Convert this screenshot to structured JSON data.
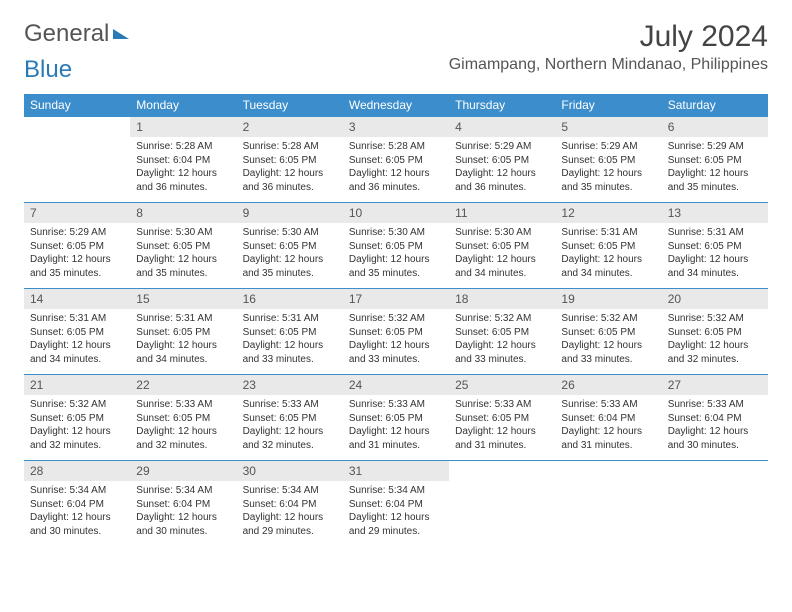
{
  "logo": {
    "part1": "General",
    "part2": "Blue"
  },
  "title": "July 2024",
  "location": "Gimampang, Northern Mindanao, Philippines",
  "colors": {
    "header_bg": "#3b8dcb",
    "daynum_bg": "#e9e9e9",
    "border": "#3b8dcb"
  },
  "weekdays": [
    "Sunday",
    "Monday",
    "Tuesday",
    "Wednesday",
    "Thursday",
    "Friday",
    "Saturday"
  ],
  "weeks": [
    [
      null,
      {
        "n": "1",
        "sr": "5:28 AM",
        "ss": "6:04 PM",
        "dl": "12 hours and 36 minutes."
      },
      {
        "n": "2",
        "sr": "5:28 AM",
        "ss": "6:05 PM",
        "dl": "12 hours and 36 minutes."
      },
      {
        "n": "3",
        "sr": "5:28 AM",
        "ss": "6:05 PM",
        "dl": "12 hours and 36 minutes."
      },
      {
        "n": "4",
        "sr": "5:29 AM",
        "ss": "6:05 PM",
        "dl": "12 hours and 36 minutes."
      },
      {
        "n": "5",
        "sr": "5:29 AM",
        "ss": "6:05 PM",
        "dl": "12 hours and 35 minutes."
      },
      {
        "n": "6",
        "sr": "5:29 AM",
        "ss": "6:05 PM",
        "dl": "12 hours and 35 minutes."
      }
    ],
    [
      {
        "n": "7",
        "sr": "5:29 AM",
        "ss": "6:05 PM",
        "dl": "12 hours and 35 minutes."
      },
      {
        "n": "8",
        "sr": "5:30 AM",
        "ss": "6:05 PM",
        "dl": "12 hours and 35 minutes."
      },
      {
        "n": "9",
        "sr": "5:30 AM",
        "ss": "6:05 PM",
        "dl": "12 hours and 35 minutes."
      },
      {
        "n": "10",
        "sr": "5:30 AM",
        "ss": "6:05 PM",
        "dl": "12 hours and 35 minutes."
      },
      {
        "n": "11",
        "sr": "5:30 AM",
        "ss": "6:05 PM",
        "dl": "12 hours and 34 minutes."
      },
      {
        "n": "12",
        "sr": "5:31 AM",
        "ss": "6:05 PM",
        "dl": "12 hours and 34 minutes."
      },
      {
        "n": "13",
        "sr": "5:31 AM",
        "ss": "6:05 PM",
        "dl": "12 hours and 34 minutes."
      }
    ],
    [
      {
        "n": "14",
        "sr": "5:31 AM",
        "ss": "6:05 PM",
        "dl": "12 hours and 34 minutes."
      },
      {
        "n": "15",
        "sr": "5:31 AM",
        "ss": "6:05 PM",
        "dl": "12 hours and 34 minutes."
      },
      {
        "n": "16",
        "sr": "5:31 AM",
        "ss": "6:05 PM",
        "dl": "12 hours and 33 minutes."
      },
      {
        "n": "17",
        "sr": "5:32 AM",
        "ss": "6:05 PM",
        "dl": "12 hours and 33 minutes."
      },
      {
        "n": "18",
        "sr": "5:32 AM",
        "ss": "6:05 PM",
        "dl": "12 hours and 33 minutes."
      },
      {
        "n": "19",
        "sr": "5:32 AM",
        "ss": "6:05 PM",
        "dl": "12 hours and 33 minutes."
      },
      {
        "n": "20",
        "sr": "5:32 AM",
        "ss": "6:05 PM",
        "dl": "12 hours and 32 minutes."
      }
    ],
    [
      {
        "n": "21",
        "sr": "5:32 AM",
        "ss": "6:05 PM",
        "dl": "12 hours and 32 minutes."
      },
      {
        "n": "22",
        "sr": "5:33 AM",
        "ss": "6:05 PM",
        "dl": "12 hours and 32 minutes."
      },
      {
        "n": "23",
        "sr": "5:33 AM",
        "ss": "6:05 PM",
        "dl": "12 hours and 32 minutes."
      },
      {
        "n": "24",
        "sr": "5:33 AM",
        "ss": "6:05 PM",
        "dl": "12 hours and 31 minutes."
      },
      {
        "n": "25",
        "sr": "5:33 AM",
        "ss": "6:05 PM",
        "dl": "12 hours and 31 minutes."
      },
      {
        "n": "26",
        "sr": "5:33 AM",
        "ss": "6:04 PM",
        "dl": "12 hours and 31 minutes."
      },
      {
        "n": "27",
        "sr": "5:33 AM",
        "ss": "6:04 PM",
        "dl": "12 hours and 30 minutes."
      }
    ],
    [
      {
        "n": "28",
        "sr": "5:34 AM",
        "ss": "6:04 PM",
        "dl": "12 hours and 30 minutes."
      },
      {
        "n": "29",
        "sr": "5:34 AM",
        "ss": "6:04 PM",
        "dl": "12 hours and 30 minutes."
      },
      {
        "n": "30",
        "sr": "5:34 AM",
        "ss": "6:04 PM",
        "dl": "12 hours and 29 minutes."
      },
      {
        "n": "31",
        "sr": "5:34 AM",
        "ss": "6:04 PM",
        "dl": "12 hours and 29 minutes."
      },
      null,
      null,
      null
    ]
  ],
  "labels": {
    "sunrise": "Sunrise:",
    "sunset": "Sunset:",
    "daylight": "Daylight:"
  }
}
